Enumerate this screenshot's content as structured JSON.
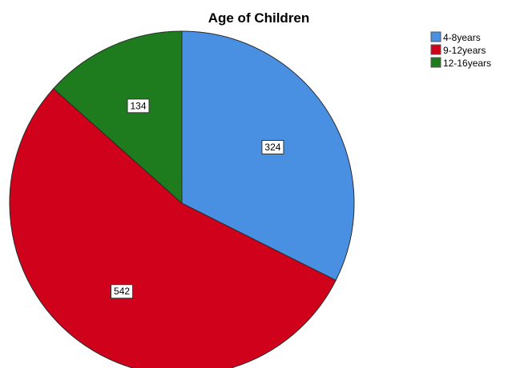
{
  "chart_data": {
    "type": "pie",
    "title": "Age of Children",
    "categories": [
      "4-8years",
      "9-12years",
      "12-16years"
    ],
    "values": [
      324,
      542,
      134
    ],
    "colors": [
      "#4a90e2",
      "#d0021b",
      "#1e7b1e"
    ],
    "data_labels": [
      "324",
      "542",
      "134"
    ],
    "start_angle_deg": 0,
    "direction": "clockwise",
    "legend_position": "top-right"
  }
}
